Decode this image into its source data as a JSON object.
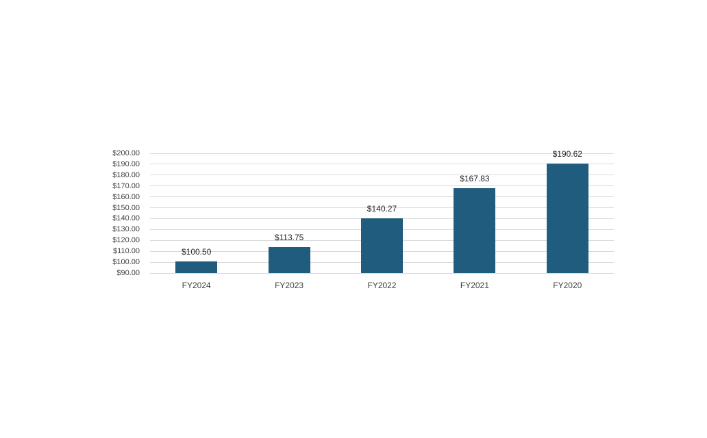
{
  "chart_data": {
    "type": "bar",
    "categories": [
      "FY2024",
      "FY2023",
      "FY2022",
      "FY2021",
      "FY2020"
    ],
    "values": [
      100.5,
      113.75,
      140.27,
      167.83,
      190.62
    ],
    "data_labels": [
      "$100.50",
      "$113.75",
      "$140.27",
      "$167.83",
      "$190.62"
    ],
    "title": "",
    "xlabel": "",
    "ylabel": "",
    "ylim": [
      90,
      200
    ],
    "y_tick_step": 10,
    "y_tick_labels": [
      "$90.00",
      "$100.00",
      "$110.00",
      "$120.00",
      "$130.00",
      "$140.00",
      "$150.00",
      "$160.00",
      "$170.00",
      "$180.00",
      "$190.00",
      "$200.00"
    ],
    "grid": true,
    "legend": false,
    "colors": {
      "bar_fill": "#1f5c7d",
      "gridline": "#d9d9d9",
      "tick_label": "#404040",
      "data_label": "#262626",
      "background": "#ffffff"
    }
  }
}
